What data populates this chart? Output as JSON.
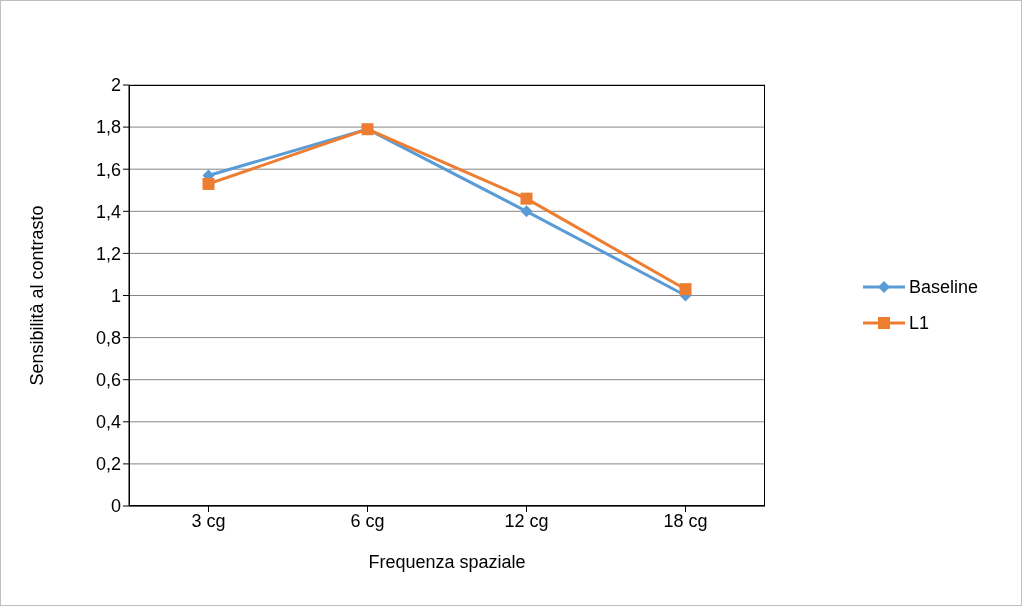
{
  "chart_data": {
    "type": "line",
    "xlabel": "Frequenza spaziale",
    "ylabel": "Sensibilità al contrasto",
    "categories": [
      "3 cg",
      "6 cg",
      "12 cg",
      "18 cg"
    ],
    "series": [
      {
        "name": "Baseline",
        "color": "#5b9bd5",
        "marker": "diamond",
        "values": [
          1.57,
          1.79,
          1.4,
          1.0
        ]
      },
      {
        "name": "L1",
        "color": "#ed7d31",
        "marker": "square",
        "values": [
          1.53,
          1.79,
          1.46,
          1.03
        ]
      }
    ],
    "ylim": [
      0,
      2
    ],
    "yticks": [
      {
        "value": 0,
        "label": "0"
      },
      {
        "value": 0.2,
        "label": "0,2"
      },
      {
        "value": 0.4,
        "label": "0,4"
      },
      {
        "value": 0.6,
        "label": "0,6"
      },
      {
        "value": 0.8,
        "label": "0,8"
      },
      {
        "value": 1,
        "label": "1"
      },
      {
        "value": 1.2,
        "label": "1,2"
      },
      {
        "value": 1.4,
        "label": "1,4"
      },
      {
        "value": 1.6,
        "label": "1,6"
      },
      {
        "value": 1.8,
        "label": "1,8"
      },
      {
        "value": 2,
        "label": "2"
      }
    ],
    "grid": "y",
    "legend": "right",
    "line_style": "solid"
  }
}
